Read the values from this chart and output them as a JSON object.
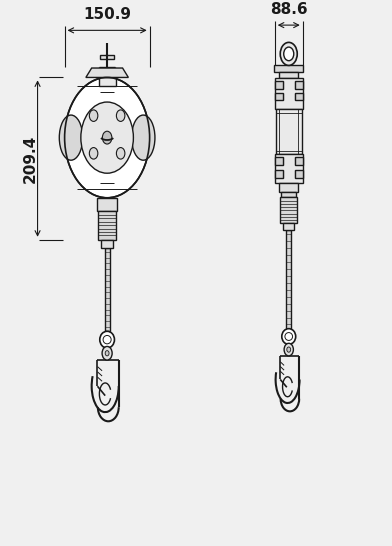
{
  "bg_color": "#f0f0f0",
  "line_color": "#1a1a1a",
  "lw": 1.0,
  "dlw": 0.8,
  "dim_width": "150.9",
  "dim_height": "209.4",
  "dim_side_width": "88.6",
  "lcx": 0.27,
  "rcx": 0.74,
  "font_size_dim": 11
}
